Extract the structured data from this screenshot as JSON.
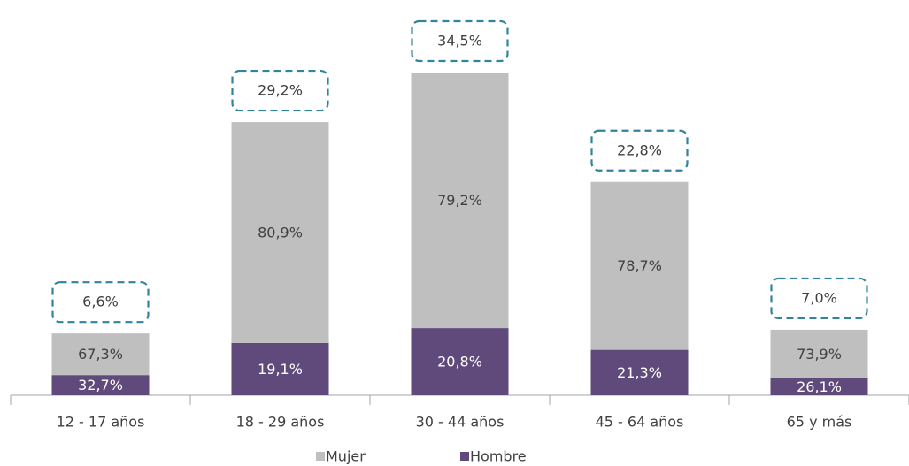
{
  "chart_data": {
    "type": "stacked-bar",
    "categories": [
      "12 - 17 años",
      "18 - 29 años",
      "30 - 44 años",
      "45 - 64 años",
      "65 y más"
    ],
    "series": [
      {
        "name": "Mujer",
        "color": "#bfbfbf",
        "values": [
          67.3,
          80.9,
          79.2,
          78.7,
          73.9
        ],
        "value_labels": [
          "67,3%",
          "80,9%",
          "79,2%",
          "78,7%",
          "73,9%"
        ]
      },
      {
        "name": "Hombre",
        "color": "#604a7b",
        "values": [
          32.7,
          19.1,
          20.8,
          21.3,
          26.1
        ],
        "value_labels": [
          "32,7%",
          "19,1%",
          "20,8%",
          "21,3%",
          "26,1%"
        ]
      }
    ],
    "totals": {
      "values": [
        6.6,
        29.2,
        34.5,
        22.8,
        7.0
      ],
      "value_labels": [
        "6,6%",
        "29,2%",
        "34,5%",
        "22,8%",
        "7,0%"
      ]
    }
  }
}
